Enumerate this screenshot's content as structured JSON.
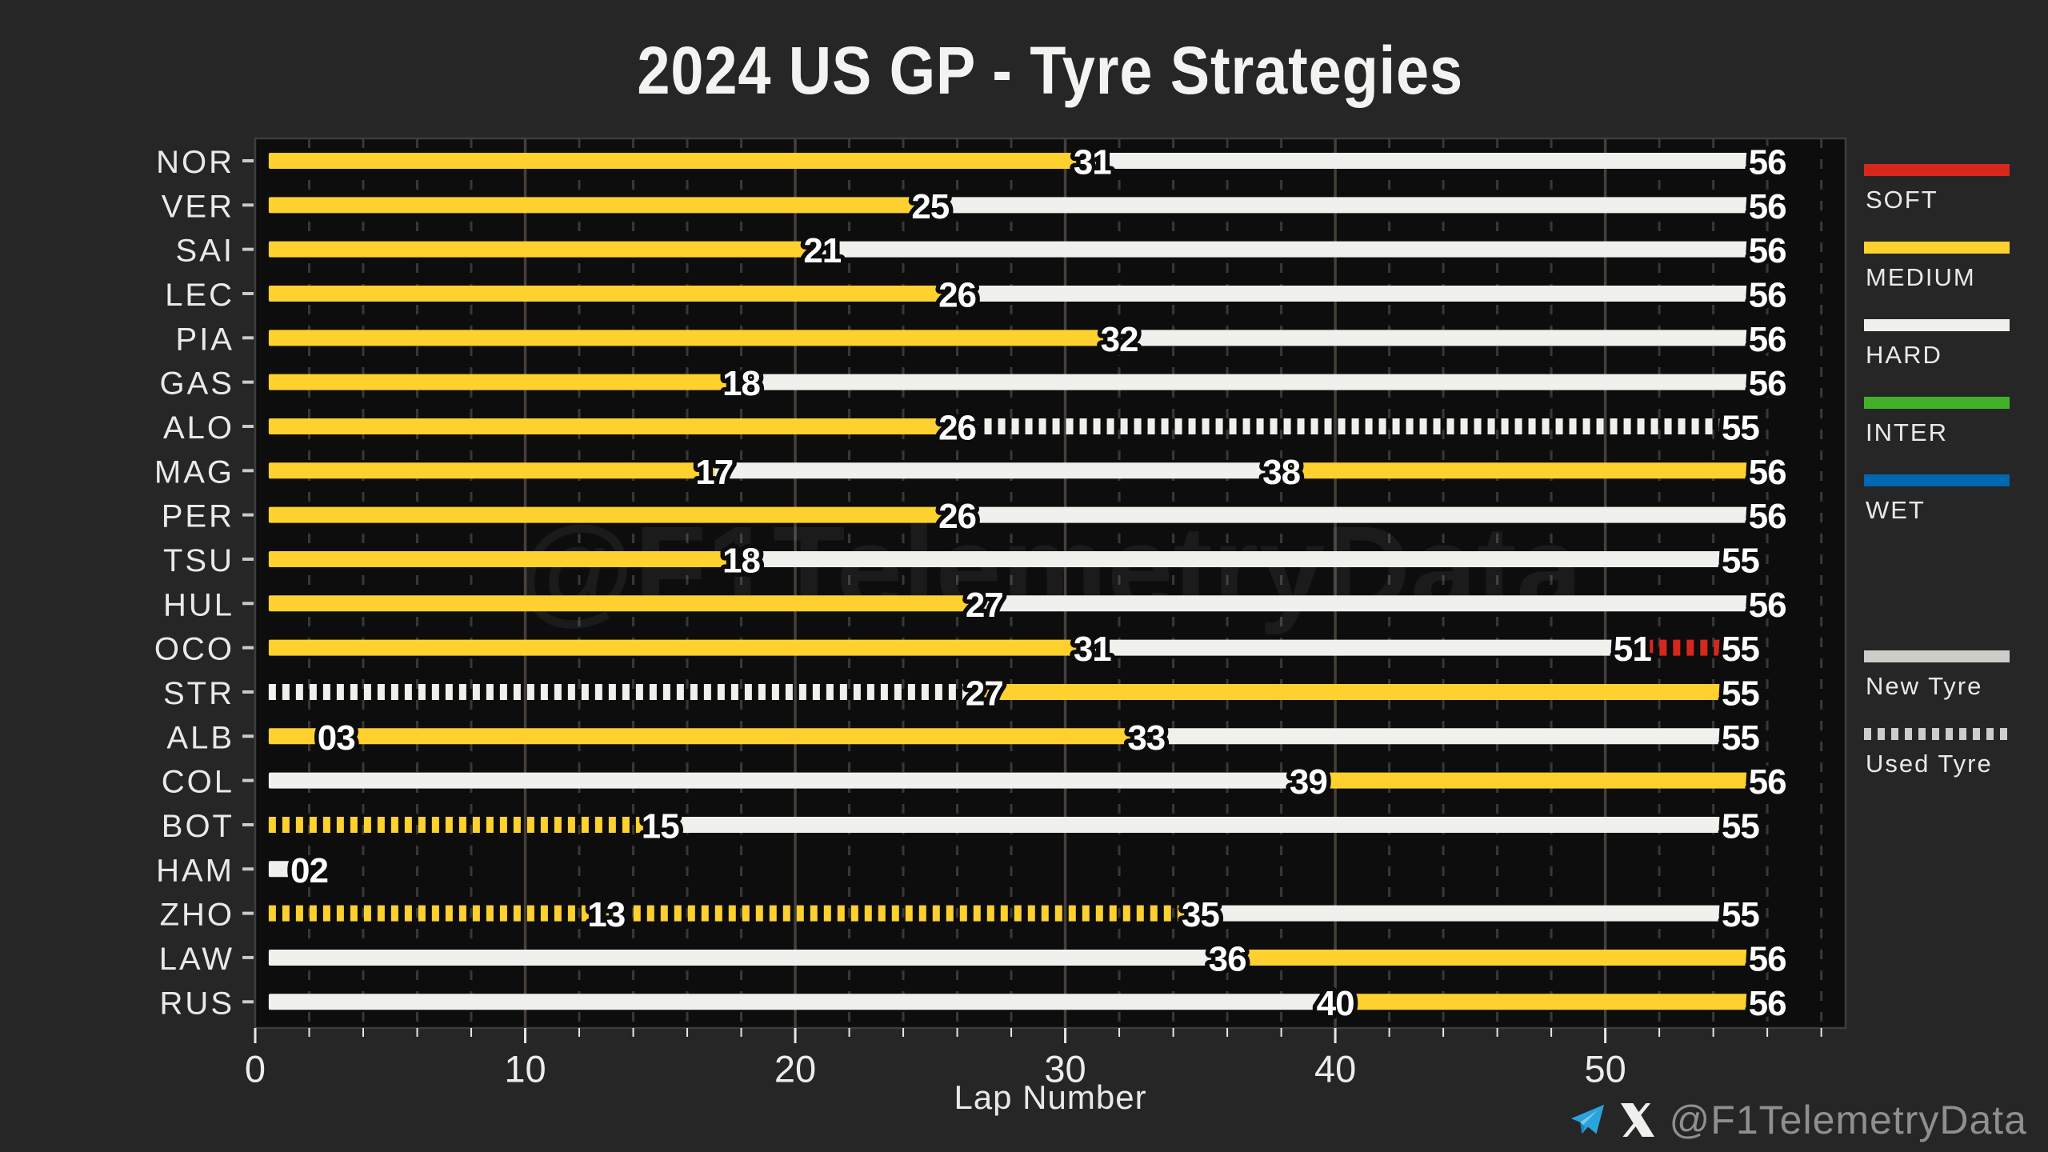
{
  "chart_data": {
    "type": "bar",
    "orientation": "horizontal",
    "title": "2024 US GP - Tyre Strategies",
    "xlabel": "Lap Number",
    "x_ticks": [
      0,
      10,
      20,
      30,
      40,
      50
    ],
    "x_minor_step": 2,
    "xlim": [
      0,
      58.9
    ],
    "grid": {
      "major": "solid",
      "minor": "dashed"
    },
    "watermark": "@F1TelemetryData",
    "compound_colors": {
      "SOFT": "#D7271D",
      "MEDIUM": "#FFD12E",
      "HARD": "#F0F0EC",
      "INTER": "#43B02A",
      "WET": "#0067B1"
    },
    "legend": {
      "compounds": [
        "SOFT",
        "MEDIUM",
        "HARD",
        "INTER",
        "WET"
      ],
      "usage": [
        {
          "label": "New Tyre",
          "style": "solid"
        },
        {
          "label": "Used Tyre",
          "style": "dashed"
        }
      ]
    },
    "drivers": [
      {
        "code": "NOR",
        "stints": [
          {
            "compound": "MEDIUM",
            "new": true,
            "end_lap": 31
          },
          {
            "compound": "HARD",
            "new": true,
            "end_lap": 56
          }
        ]
      },
      {
        "code": "VER",
        "stints": [
          {
            "compound": "MEDIUM",
            "new": true,
            "end_lap": 25
          },
          {
            "compound": "HARD",
            "new": true,
            "end_lap": 56
          }
        ]
      },
      {
        "code": "SAI",
        "stints": [
          {
            "compound": "MEDIUM",
            "new": true,
            "end_lap": 21
          },
          {
            "compound": "HARD",
            "new": true,
            "end_lap": 56
          }
        ]
      },
      {
        "code": "LEC",
        "stints": [
          {
            "compound": "MEDIUM",
            "new": true,
            "end_lap": 26
          },
          {
            "compound": "HARD",
            "new": true,
            "end_lap": 56
          }
        ]
      },
      {
        "code": "PIA",
        "stints": [
          {
            "compound": "MEDIUM",
            "new": true,
            "end_lap": 32
          },
          {
            "compound": "HARD",
            "new": true,
            "end_lap": 56
          }
        ]
      },
      {
        "code": "GAS",
        "stints": [
          {
            "compound": "MEDIUM",
            "new": true,
            "end_lap": 18
          },
          {
            "compound": "HARD",
            "new": true,
            "end_lap": 56
          }
        ]
      },
      {
        "code": "ALO",
        "stints": [
          {
            "compound": "MEDIUM",
            "new": true,
            "end_lap": 26
          },
          {
            "compound": "HARD",
            "new": false,
            "end_lap": 55
          }
        ]
      },
      {
        "code": "MAG",
        "stints": [
          {
            "compound": "MEDIUM",
            "new": true,
            "end_lap": 17
          },
          {
            "compound": "HARD",
            "new": true,
            "end_lap": 38
          },
          {
            "compound": "MEDIUM",
            "new": true,
            "end_lap": 56
          }
        ]
      },
      {
        "code": "PER",
        "stints": [
          {
            "compound": "MEDIUM",
            "new": true,
            "end_lap": 26
          },
          {
            "compound": "HARD",
            "new": true,
            "end_lap": 56
          }
        ]
      },
      {
        "code": "TSU",
        "stints": [
          {
            "compound": "MEDIUM",
            "new": true,
            "end_lap": 18
          },
          {
            "compound": "HARD",
            "new": true,
            "end_lap": 55
          }
        ]
      },
      {
        "code": "HUL",
        "stints": [
          {
            "compound": "MEDIUM",
            "new": true,
            "end_lap": 27
          },
          {
            "compound": "HARD",
            "new": true,
            "end_lap": 56
          }
        ]
      },
      {
        "code": "OCO",
        "stints": [
          {
            "compound": "MEDIUM",
            "new": true,
            "end_lap": 31
          },
          {
            "compound": "HARD",
            "new": true,
            "end_lap": 51
          },
          {
            "compound": "SOFT",
            "new": false,
            "end_lap": 55
          }
        ]
      },
      {
        "code": "STR",
        "stints": [
          {
            "compound": "HARD",
            "new": false,
            "end_lap": 27
          },
          {
            "compound": "MEDIUM",
            "new": true,
            "end_lap": 55
          }
        ]
      },
      {
        "code": "ALB",
        "stints": [
          {
            "compound": "MEDIUM",
            "new": true,
            "end_lap": 3
          },
          {
            "compound": "MEDIUM",
            "new": true,
            "end_lap": 33
          },
          {
            "compound": "HARD",
            "new": true,
            "end_lap": 55
          }
        ]
      },
      {
        "code": "COL",
        "stints": [
          {
            "compound": "HARD",
            "new": true,
            "end_lap": 39
          },
          {
            "compound": "MEDIUM",
            "new": true,
            "end_lap": 56
          }
        ]
      },
      {
        "code": "BOT",
        "stints": [
          {
            "compound": "MEDIUM",
            "new": false,
            "end_lap": 15
          },
          {
            "compound": "HARD",
            "new": true,
            "end_lap": 55
          }
        ]
      },
      {
        "code": "HAM",
        "stints": [
          {
            "compound": "HARD",
            "new": true,
            "end_lap": 2
          }
        ]
      },
      {
        "code": "ZHO",
        "stints": [
          {
            "compound": "MEDIUM",
            "new": false,
            "end_lap": 13
          },
          {
            "compound": "MEDIUM",
            "new": false,
            "end_lap": 35
          },
          {
            "compound": "HARD",
            "new": true,
            "end_lap": 55
          }
        ]
      },
      {
        "code": "LAW",
        "stints": [
          {
            "compound": "HARD",
            "new": true,
            "end_lap": 36
          },
          {
            "compound": "MEDIUM",
            "new": true,
            "end_lap": 56
          }
        ]
      },
      {
        "code": "RUS",
        "stints": [
          {
            "compound": "HARD",
            "new": true,
            "end_lap": 40
          },
          {
            "compound": "MEDIUM",
            "new": true,
            "end_lap": 56
          }
        ]
      }
    ]
  },
  "branding": {
    "handle": "@F1TelemetryData",
    "icons": [
      "telegram-icon",
      "x-icon"
    ]
  },
  "theme": {
    "fig_bg": "#262626",
    "plot_bg": "#0D0D0D",
    "grid_major": "#463F3A",
    "grid_minor": "#383838",
    "text": "#E9E9E7",
    "tick": "#C9C9C7",
    "label_outline": "#0D0D0D",
    "watermark_color": "rgba(255,255,255,0.06)",
    "telegram_blue": "#2AA4DC",
    "handle_grey": "#8F8F8D"
  }
}
